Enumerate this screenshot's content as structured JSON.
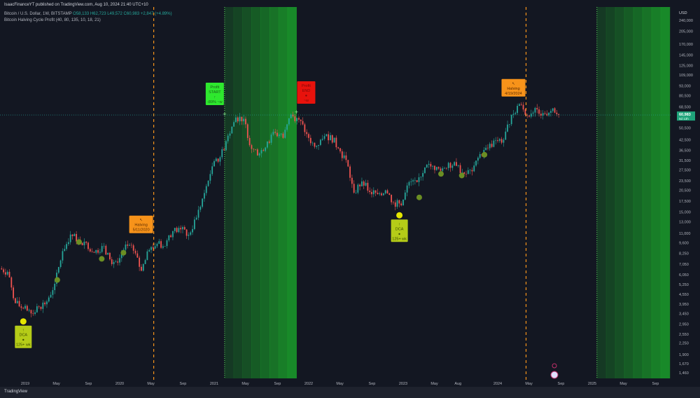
{
  "header": {
    "publish_line": "IsaacFinanceYT published on TradingView.com, Aug 10, 2024 21:40 UTC+10",
    "symbol": "Bitcoin / U.S. Dollar, 1W, BITSTAMP",
    "ohlc": "O58,133 H62,723 L49,572 C60,983 +2,847 (+4.89%)",
    "indicator": "Bitcoin Halving Cycle Profit (40, 80, 135, 10, 18, 21)"
  },
  "footer": {
    "brand": "TradingView"
  },
  "colors": {
    "bg": "#131722",
    "up": "#26a69a",
    "down": "#ef5350",
    "halving": "#f7931a",
    "zone": "#1a9e2a",
    "dca_dot": "#6b8e23",
    "dca_buy": "#e4e600"
  },
  "chart_data": {
    "type": "candlestick",
    "interval": "1W",
    "currency_label": "USD",
    "y_scale": "log",
    "ylim": [
      1400,
      260000
    ],
    "xlim": [
      "2018-10",
      "2025-10"
    ],
    "y_ticks": [
      "240,000",
      "205,000",
      "170,000",
      "145,000",
      "125,000",
      "109,000",
      "93,000",
      "80,500",
      "68,500",
      "50,500",
      "42,500",
      "36,500",
      "31,500",
      "27,500",
      "23,500",
      "20,500",
      "17,500",
      "15,000",
      "13,000",
      "11,000",
      "9,600",
      "8,250",
      "7,050",
      "6,050",
      "5,250",
      "4,550",
      "3,950",
      "3,450",
      "2,950",
      "2,550",
      "2,250",
      "1,900",
      "1,670",
      "1,460"
    ],
    "x_ticks": [
      "2019",
      "May",
      "Sep",
      "2020",
      "May",
      "Sep",
      "2021",
      "May",
      "Sep",
      "2022",
      "May",
      "Sep",
      "2023",
      "May",
      "Aug",
      "2024",
      "May",
      "Sep",
      "2025",
      "May",
      "Sep"
    ],
    "x_tick_dates": [
      2019.0,
      2019.33,
      2019.67,
      2020.0,
      2020.33,
      2020.67,
      2021.0,
      2021.33,
      2021.67,
      2022.0,
      2022.33,
      2022.67,
      2023.0,
      2023.33,
      2023.58,
      2024.0,
      2024.33,
      2024.67,
      2025.0,
      2025.33,
      2025.67
    ],
    "last_price": "60,983",
    "countdown": "5d 13h",
    "monthly_closes_start": "2018-10",
    "monthly_closes": [
      6300,
      4000,
      3700,
      3450,
      3800,
      4100,
      5300,
      8500,
      10800,
      10000,
      9600,
      8300,
      9150,
      7550,
      7200,
      9350,
      8550,
      6400,
      8650,
      9450,
      9150,
      11350,
      11650,
      10780,
      13800,
      19700,
      29000,
      33100,
      45200,
      58800,
      57700,
      37300,
      35000,
      41500,
      47100,
      43800,
      61300,
      57000,
      46300,
      38500,
      43200,
      45500,
      37700,
      31800,
      19800,
      23300,
      20000,
      19400,
      20500,
      17200,
      16500,
      23100,
      23100,
      28500,
      29200,
      27200,
      30500,
      29200,
      26000,
      27000,
      34600,
      37700,
      42300,
      42600,
      61200,
      71300,
      60600,
      67500,
      62700,
      64600,
      60983
    ],
    "halvings": [
      {
        "date": 2020.36,
        "label": "Halving",
        "date_text": "5/11/2020",
        "price": 9000
      },
      {
        "date": 2024.3,
        "label": "Halving",
        "date_text": "4/19/2024",
        "price": 65000
      }
    ],
    "profit_zones": [
      {
        "start": 2021.11,
        "end": 2021.87,
        "start_label": "Profit START",
        "start_note": "-89% ~w",
        "end_label": "Profit END",
        "end_note": "~w"
      },
      {
        "start": 2025.05,
        "end": 2025.82
      }
    ],
    "dca_labels": [
      {
        "date": 2018.98,
        "price": 3400,
        "label": "DCA",
        "note": "125+ wk"
      },
      {
        "date": 2022.96,
        "price": 15800,
        "label": "DCA",
        "note": "125+ wk"
      }
    ],
    "dca_dots": [
      {
        "date": 2019.34,
        "price": 5600
      },
      {
        "date": 2019.57,
        "price": 9700
      },
      {
        "date": 2019.81,
        "price": 7600
      },
      {
        "date": 2020.04,
        "price": 8300
      },
      {
        "date": 2023.17,
        "price": 18500
      },
      {
        "date": 2023.4,
        "price": 26000
      },
      {
        "date": 2023.62,
        "price": 25400
      },
      {
        "date": 2023.86,
        "price": 34300
      }
    ]
  }
}
